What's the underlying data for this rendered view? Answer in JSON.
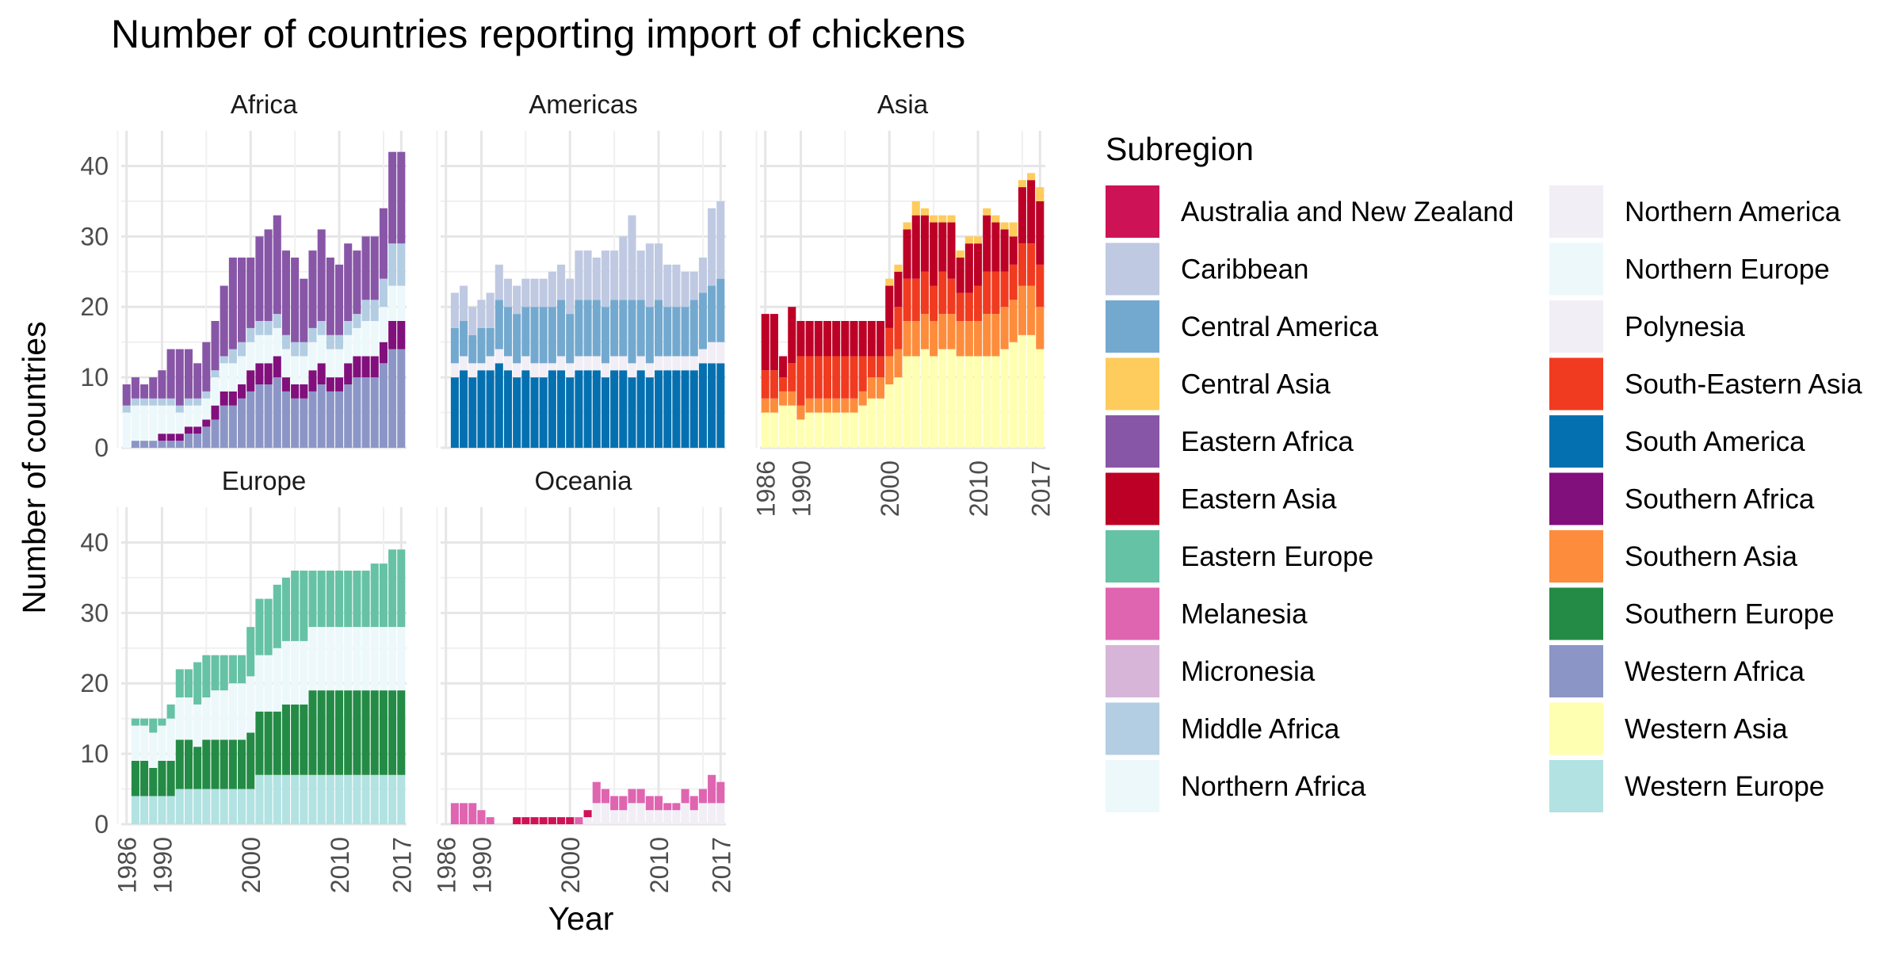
{
  "chart_data": {
    "type": "bar",
    "stacked": true,
    "faceted_by": "region",
    "title": "Number of countries reporting import of chickens",
    "xlabel": "Year",
    "ylabel": "Number of countries",
    "years": [
      1986,
      1987,
      1988,
      1989,
      1990,
      1991,
      1992,
      1993,
      1994,
      1995,
      1996,
      1997,
      1998,
      1999,
      2000,
      2001,
      2002,
      2003,
      2004,
      2005,
      2006,
      2007,
      2008,
      2009,
      2010,
      2011,
      2012,
      2013,
      2014,
      2015,
      2016,
      2017
    ],
    "x_ticks": [
      1986,
      1990,
      2000,
      2010,
      2017
    ],
    "ylim": [
      0,
      45
    ],
    "y_ticks": [
      0,
      10,
      20,
      30,
      40
    ],
    "grid": true,
    "legend_title": "Subregion",
    "legend_position": "right",
    "subregions": [
      {
        "name": "Australia and New Zealand",
        "color": "#ce1256"
      },
      {
        "name": "Caribbean",
        "color": "#bfc9e2"
      },
      {
        "name": "Central America",
        "color": "#74a9cf"
      },
      {
        "name": "Central Asia",
        "color": "#fecc5c"
      },
      {
        "name": "Eastern Africa",
        "color": "#8856a7"
      },
      {
        "name": "Eastern Asia",
        "color": "#bd0026"
      },
      {
        "name": "Eastern Europe",
        "color": "#66c2a4"
      },
      {
        "name": "Melanesia",
        "color": "#df65b0"
      },
      {
        "name": "Micronesia",
        "color": "#d7b5d8"
      },
      {
        "name": "Middle Africa",
        "color": "#b3cde3"
      },
      {
        "name": "Northern Africa",
        "color": "#edf8fb"
      },
      {
        "name": "Northern America",
        "color": "#f1eef6"
      },
      {
        "name": "Northern Europe",
        "color": "#edf8fb"
      },
      {
        "name": "Polynesia",
        "color": "#f1eef6"
      },
      {
        "name": "South-Eastern Asia",
        "color": "#f03b20"
      },
      {
        "name": "South America",
        "color": "#0570b0"
      },
      {
        "name": "Southern Africa",
        "color": "#810f7c"
      },
      {
        "name": "Southern Asia",
        "color": "#fd8d3c"
      },
      {
        "name": "Southern Europe",
        "color": "#238b45"
      },
      {
        "name": "Western Africa",
        "color": "#8c96c6"
      },
      {
        "name": "Western Asia",
        "color": "#ffffb2"
      },
      {
        "name": "Western Europe",
        "color": "#b2e2e2"
      }
    ],
    "panels": [
      {
        "region": "Africa",
        "stack_order": [
          "Western Africa",
          "Southern Africa",
          "Northern Africa",
          "Middle Africa",
          "Eastern Africa"
        ],
        "series": [
          {
            "name": "Western Africa",
            "values": [
              0,
              1,
              1,
              1,
              1,
              1,
              1,
              2,
              2,
              3,
              4,
              6,
              6,
              7,
              8,
              9,
              9,
              10,
              8,
              7,
              7,
              8,
              9,
              8,
              8,
              9,
              10,
              10,
              10,
              12,
              14,
              14
            ]
          },
          {
            "name": "Southern Africa",
            "values": [
              0,
              0,
              0,
              0,
              1,
              1,
              1,
              1,
              1,
              1,
              2,
              2,
              2,
              2,
              3,
              3,
              3,
              3,
              2,
              2,
              2,
              3,
              3,
              2,
              2,
              3,
              3,
              3,
              3,
              3,
              4,
              4
            ]
          },
          {
            "name": "Northern Africa",
            "values": [
              5,
              5,
              5,
              5,
              4,
              4,
              3,
              3,
              3,
              3,
              4,
              4,
              4,
              4,
              4,
              4,
              4,
              4,
              4,
              4,
              4,
              4,
              4,
              4,
              4,
              4,
              4,
              5,
              5,
              5,
              5,
              5
            ]
          },
          {
            "name": "Middle Africa",
            "values": [
              1,
              1,
              1,
              1,
              1,
              1,
              1,
              1,
              1,
              1,
              1,
              1,
              2,
              2,
              2,
              2,
              2,
              2,
              2,
              2,
              2,
              2,
              2,
              2,
              2,
              2,
              2,
              3,
              3,
              4,
              6,
              6
            ]
          },
          {
            "name": "Eastern Africa",
            "values": [
              3,
              3,
              2,
              3,
              4,
              7,
              8,
              7,
              5,
              7,
              7,
              10,
              13,
              12,
              10,
              12,
              13,
              14,
              12,
              12,
              9,
              11,
              13,
              11,
              10,
              11,
              9,
              9,
              9,
              10,
              13,
              13
            ]
          }
        ]
      },
      {
        "region": "Americas",
        "stack_order": [
          "South America",
          "Northern America",
          "Central America",
          "Caribbean"
        ],
        "series": [
          {
            "name": "South America",
            "values": [
              0,
              10,
              11,
              10,
              11,
              11,
              12,
              11,
              10,
              11,
              10,
              10,
              11,
              11,
              10,
              11,
              11,
              11,
              10,
              11,
              11,
              10,
              11,
              10,
              11,
              11,
              11,
              11,
              11,
              12,
              12,
              12
            ]
          },
          {
            "name": "Northern America",
            "values": [
              0,
              2,
              2,
              2,
              1,
              2,
              2,
              2,
              2,
              2,
              2,
              2,
              1,
              2,
              2,
              2,
              2,
              2,
              2,
              2,
              2,
              2,
              2,
              2,
              2,
              2,
              2,
              2,
              2,
              2,
              3,
              3
            ]
          },
          {
            "name": "Central America",
            "values": [
              0,
              5,
              5,
              4,
              5,
              4,
              7,
              7,
              7,
              7,
              8,
              8,
              8,
              8,
              7,
              8,
              8,
              8,
              8,
              8,
              8,
              9,
              8,
              8,
              8,
              7,
              7,
              7,
              8,
              8,
              8,
              9
            ]
          },
          {
            "name": "Caribbean",
            "values": [
              0,
              5,
              5,
              4,
              4,
              5,
              5,
              4,
              4,
              4,
              4,
              4,
              5,
              5,
              5,
              7,
              7,
              6,
              8,
              7,
              9,
              12,
              7,
              9,
              8,
              6,
              6,
              5,
              4,
              5,
              11,
              11
            ]
          }
        ]
      },
      {
        "region": "Asia",
        "stack_order": [
          "Western Asia",
          "Southern Asia",
          "South-Eastern Asia",
          "Eastern Asia",
          "Central Asia"
        ],
        "series": [
          {
            "name": "Western Asia",
            "values": [
              5,
              5,
              6,
              6,
              4,
              5,
              5,
              5,
              5,
              5,
              5,
              6,
              7,
              7,
              9,
              10,
              13,
              13,
              14,
              13,
              14,
              14,
              13,
              13,
              13,
              13,
              13,
              14,
              15,
              16,
              16,
              14
            ]
          },
          {
            "name": "Southern Asia",
            "values": [
              2,
              2,
              2,
              2,
              2,
              2,
              2,
              2,
              2,
              2,
              2,
              2,
              3,
              3,
              4,
              4,
              5,
              5,
              5,
              5,
              5,
              5,
              5,
              5,
              5,
              6,
              6,
              6,
              6,
              7,
              7,
              6
            ]
          },
          {
            "name": "South-Eastern Asia",
            "values": [
              4,
              4,
              2,
              4,
              7,
              6,
              6,
              6,
              6,
              6,
              6,
              5,
              3,
              3,
              4,
              6,
              6,
              6,
              6,
              5,
              6,
              5,
              4,
              4,
              5,
              6,
              6,
              5,
              5,
              6,
              6,
              6
            ]
          },
          {
            "name": "Eastern Asia",
            "values": [
              8,
              8,
              3,
              8,
              5,
              5,
              5,
              5,
              5,
              5,
              5,
              5,
              5,
              5,
              6,
              5,
              7,
              9,
              8,
              9,
              7,
              8,
              5,
              7,
              6,
              8,
              7,
              6,
              4,
              8,
              9,
              9
            ]
          },
          {
            "name": "Central Asia",
            "values": [
              0,
              0,
              0,
              0,
              0,
              0,
              0,
              0,
              0,
              0,
              0,
              0,
              0,
              0,
              1,
              1,
              1,
              2,
              1,
              1,
              1,
              1,
              1,
              1,
              1,
              1,
              1,
              1,
              2,
              1,
              1,
              2
            ]
          }
        ]
      },
      {
        "region": "Europe",
        "stack_order": [
          "Western Europe",
          "Southern Europe",
          "Northern Europe",
          "Eastern Europe"
        ],
        "series": [
          {
            "name": "Western Europe",
            "values": [
              0,
              4,
              4,
              4,
              4,
              4,
              5,
              5,
              5,
              5,
              5,
              5,
              5,
              5,
              5,
              7,
              7,
              7,
              7,
              7,
              7,
              7,
              7,
              7,
              7,
              7,
              7,
              7,
              7,
              7,
              7,
              7
            ]
          },
          {
            "name": "Southern Europe",
            "values": [
              0,
              5,
              5,
              4,
              5,
              5,
              7,
              7,
              6,
              7,
              7,
              7,
              7,
              7,
              8,
              9,
              9,
              9,
              10,
              10,
              10,
              12,
              12,
              12,
              12,
              12,
              12,
              12,
              12,
              12,
              12,
              12
            ]
          },
          {
            "name": "Northern Europe",
            "values": [
              0,
              5,
              5,
              5,
              5,
              6,
              6,
              6,
              6,
              6,
              7,
              7,
              8,
              8,
              8,
              8,
              8,
              9,
              9,
              9,
              9,
              9,
              9,
              9,
              9,
              9,
              9,
              9,
              9,
              9,
              9,
              9
            ]
          },
          {
            "name": "Eastern Europe",
            "values": [
              0,
              1,
              1,
              2,
              1,
              2,
              4,
              4,
              6,
              6,
              5,
              5,
              4,
              4,
              7,
              8,
              8,
              9,
              9,
              10,
              10,
              8,
              8,
              8,
              8,
              8,
              8,
              8,
              9,
              9,
              11,
              11
            ]
          }
        ]
      },
      {
        "region": "Oceania",
        "stack_order": [
          "Polynesia",
          "Micronesia",
          "Melanesia",
          "Australia and New Zealand"
        ],
        "series": [
          {
            "name": "Polynesia",
            "values": [
              0,
              0,
              0,
              0,
              0,
              0,
              0,
              0,
              0,
              0,
              0,
              0,
              0,
              0,
              0,
              0,
              1,
              3,
              3,
              2,
              2,
              3,
              3,
              2,
              2,
              2,
              2,
              3,
              2,
              3,
              3,
              3
            ]
          },
          {
            "name": "Micronesia",
            "values": [
              0,
              0,
              0,
              0,
              0,
              0,
              0,
              0,
              0,
              0,
              0,
              0,
              0,
              0,
              0,
              0,
              0,
              0,
              0,
              0,
              0,
              0,
              0,
              0,
              0,
              0,
              0,
              0,
              0,
              0,
              0,
              0
            ]
          },
          {
            "name": "Melanesia",
            "values": [
              0,
              3,
              3,
              3,
              2,
              1,
              0,
              0,
              0,
              0,
              0,
              0,
              0,
              0,
              0,
              1,
              0,
              3,
              2,
              2,
              2,
              2,
              2,
              2,
              2,
              1,
              1,
              2,
              2,
              2,
              4,
              3
            ]
          },
          {
            "name": "Australia and New Zealand",
            "values": [
              0,
              0,
              0,
              0,
              0,
              0,
              0,
              0,
              1,
              1,
              1,
              1,
              1,
              1,
              1,
              0,
              1,
              0,
              0,
              0,
              0,
              0,
              0,
              0,
              0,
              0,
              0,
              0,
              0,
              0,
              0,
              0
            ]
          }
        ]
      }
    ]
  }
}
